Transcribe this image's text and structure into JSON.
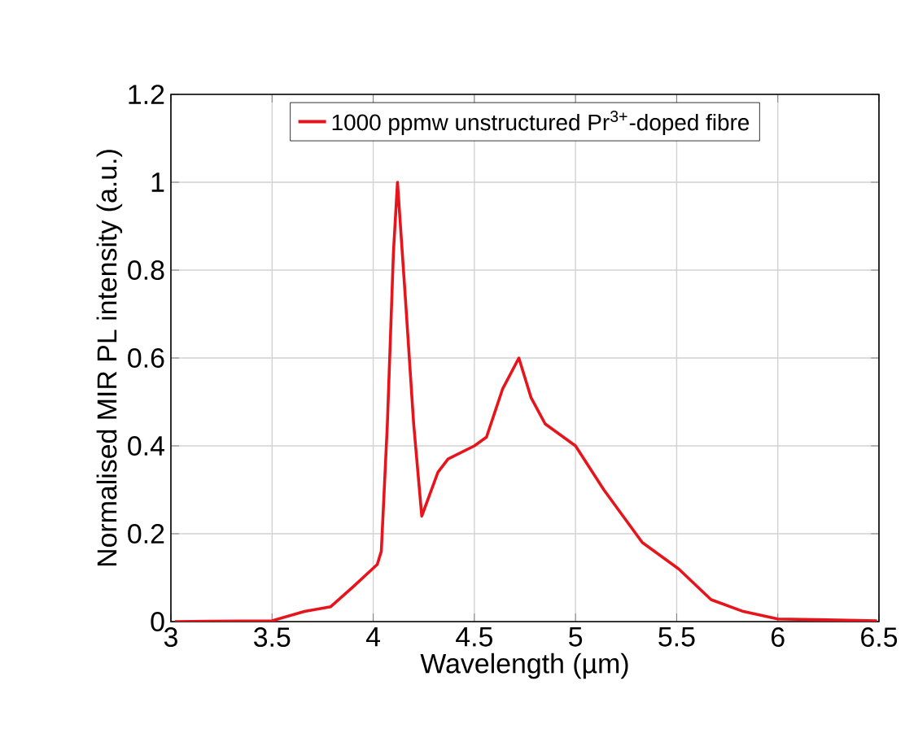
{
  "chart_data": {
    "type": "line",
    "xlabel": "Wavelength (µm)",
    "ylabel": "Normalised MIR PL intensity (a.u.)",
    "xlim": [
      3,
      6.5
    ],
    "ylim": [
      0,
      1.2
    ],
    "xticks": [
      3,
      3.5,
      4,
      4.5,
      5,
      5.5,
      6,
      6.5
    ],
    "yticks": [
      0,
      0.2,
      0.4,
      0.6,
      0.8,
      1,
      1.2
    ],
    "grid": true,
    "legend": "top",
    "marker": "none",
    "line_style": "solid",
    "series": [
      {
        "name": "1000 ppmw unstructured Pr$^{3+}$-doped fibre",
        "color": "#e8141c",
        "x": [
          3.02,
          3.5,
          3.66,
          3.79,
          3.9,
          4.02,
          4.04,
          4.07,
          4.1,
          4.12,
          4.16,
          4.2,
          4.24,
          4.32,
          4.37,
          4.5,
          4.56,
          4.64,
          4.72,
          4.78,
          4.85,
          5.0,
          5.14,
          5.33,
          5.51,
          5.67,
          5.83,
          6.0,
          6.49
        ],
        "values": [
          0,
          0.002,
          0.023,
          0.034,
          0.079,
          0.13,
          0.16,
          0.45,
          0.84,
          1.0,
          0.73,
          0.45,
          0.24,
          0.34,
          0.37,
          0.4,
          0.42,
          0.53,
          0.6,
          0.51,
          0.45,
          0.4,
          0.3,
          0.18,
          0.12,
          0.05,
          0.023,
          0.006,
          0.002
        ]
      }
    ]
  }
}
